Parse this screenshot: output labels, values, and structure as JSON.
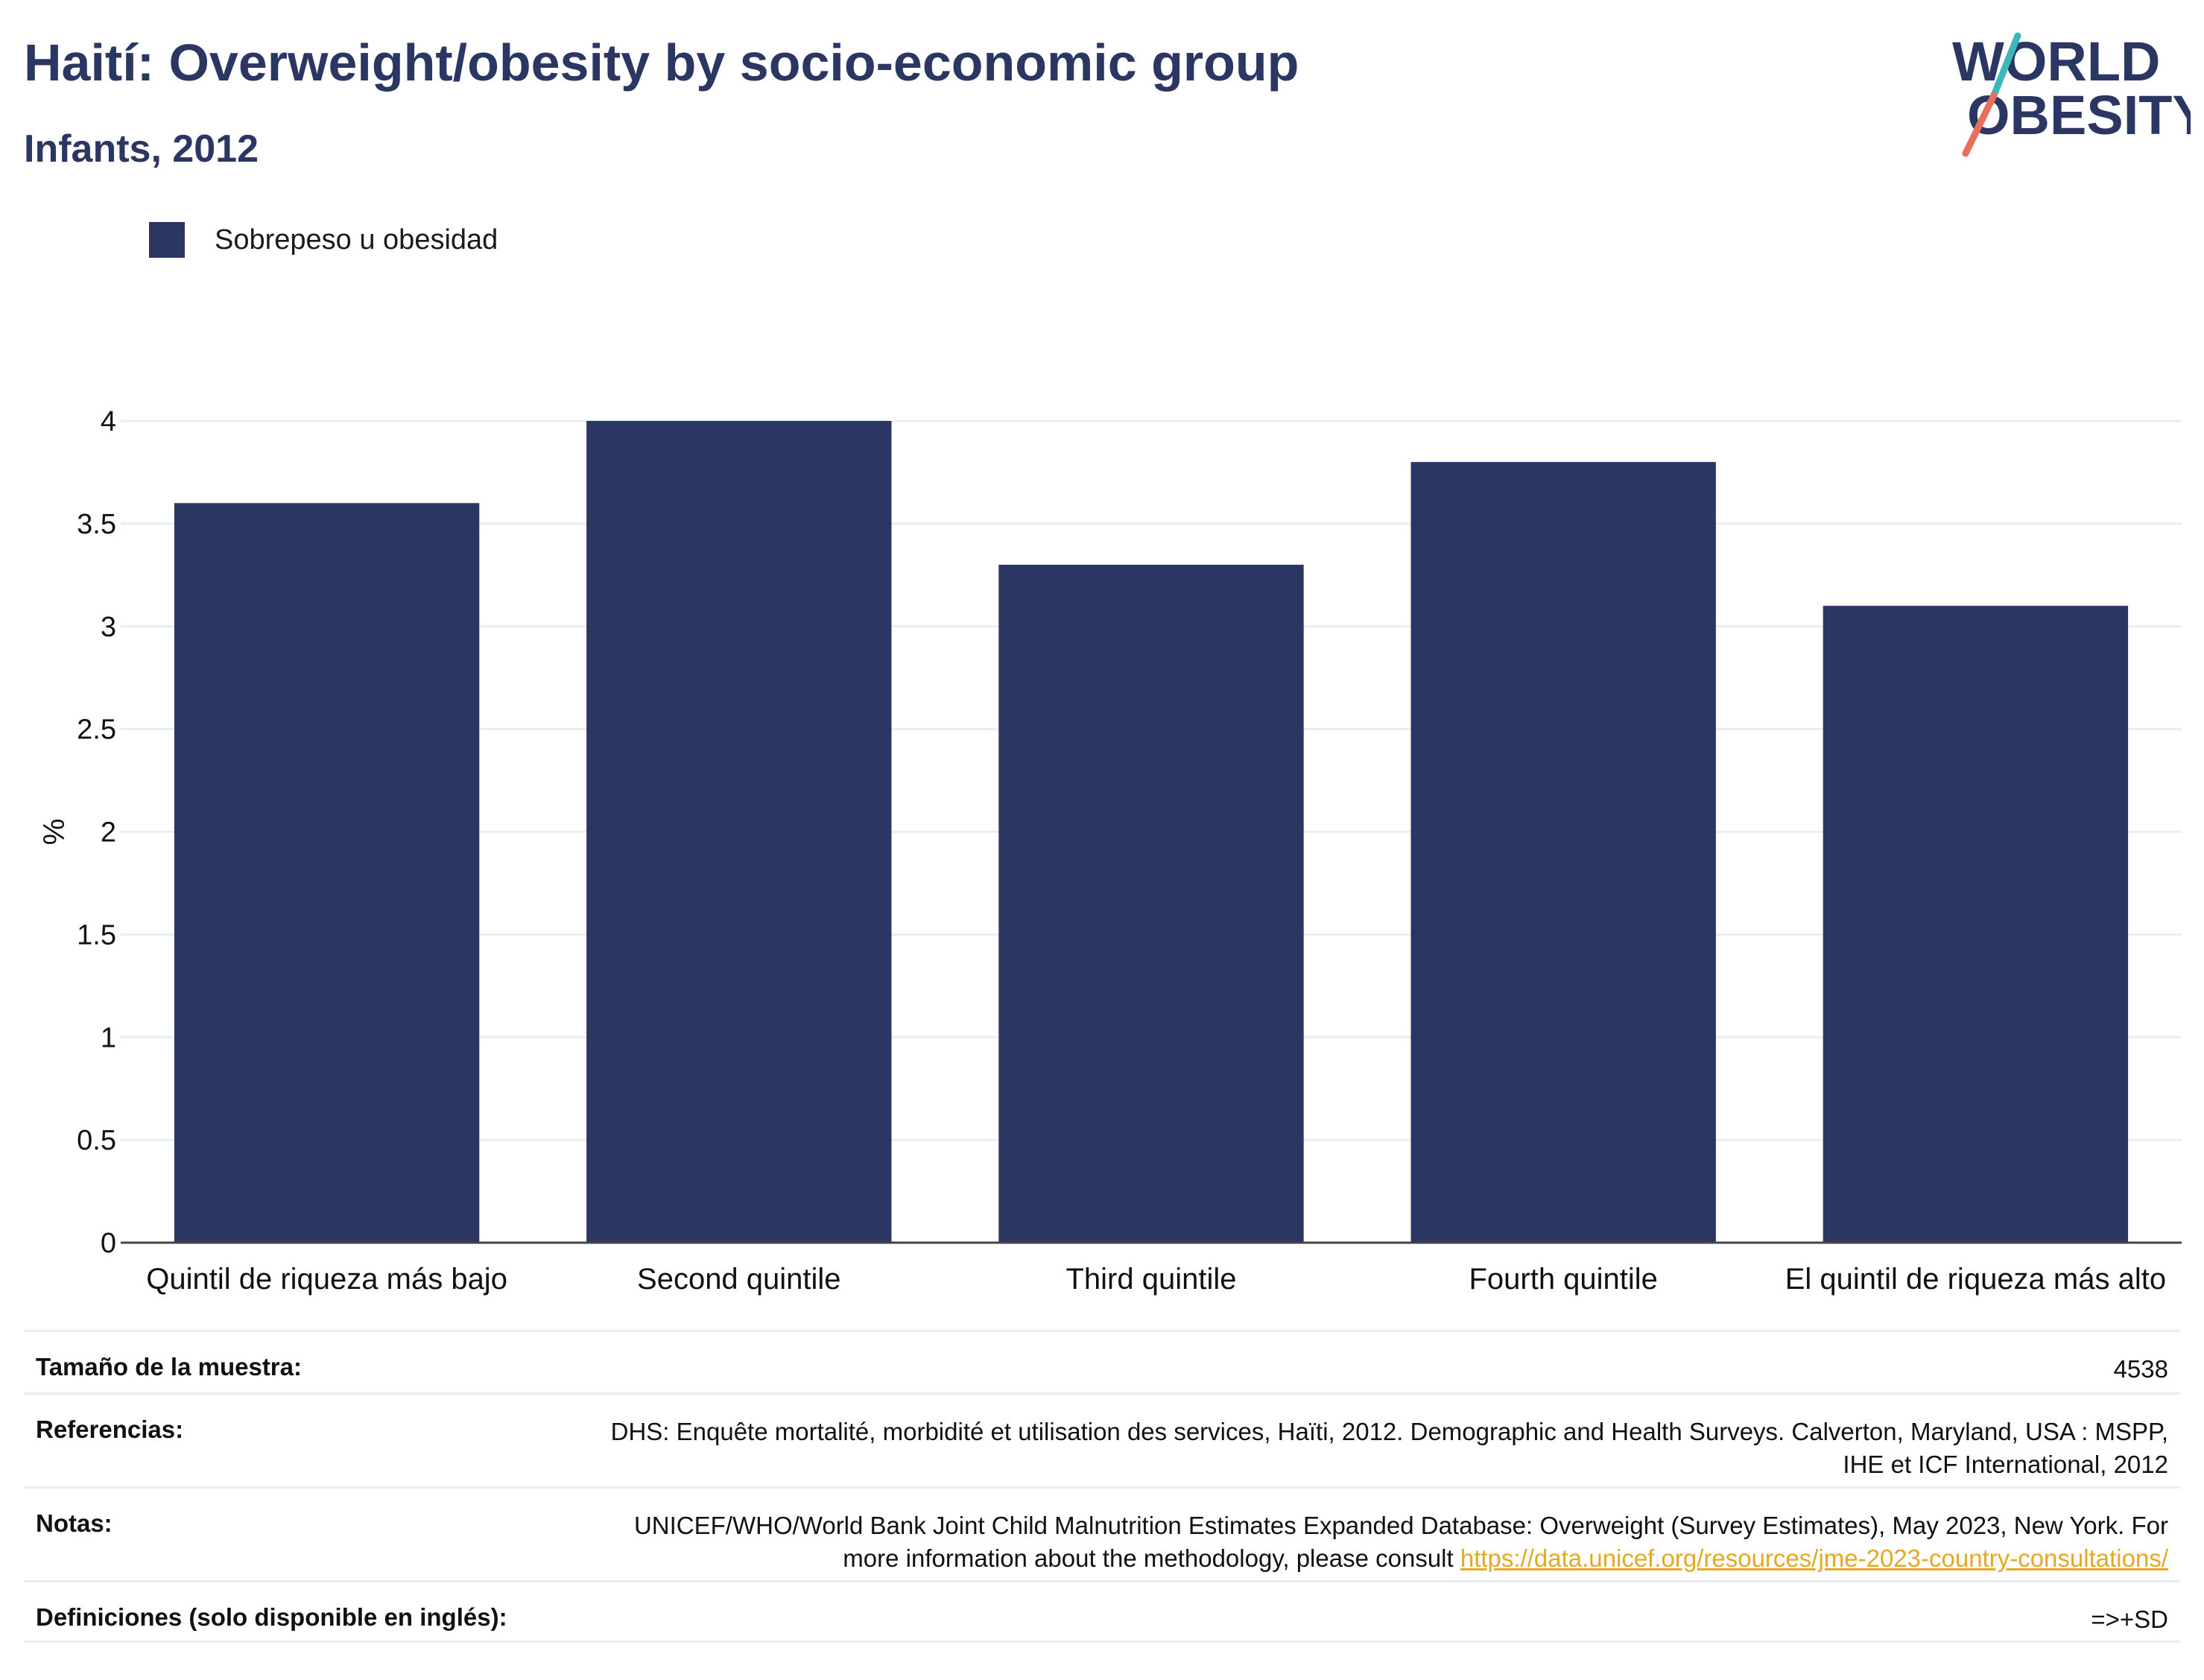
{
  "header": {
    "title": "Haití: Overweight/obesity by socio-economic group",
    "subtitle": "Infants, 2012"
  },
  "logo": {
    "line1": "WORLD",
    "line2": "OBESITY"
  },
  "colors": {
    "bar": "#2b3663",
    "grid": "#e8eef4",
    "link": "#e5a823",
    "logo_teal": "#3cb8b8",
    "logo_coral": "#e8705a"
  },
  "chart_data": {
    "type": "bar",
    "categories": [
      "Quintil de riqueza más bajo",
      "Second quintile",
      "Third quintile",
      "Fourth quintile",
      "El quintil de riqueza más alto"
    ],
    "series": [
      {
        "name": "Sobrepeso u obesidad",
        "values": [
          3.6,
          4.0,
          3.3,
          3.8,
          3.1
        ]
      }
    ],
    "ylabel": "%",
    "xlabel": "",
    "ylim": [
      0,
      4
    ],
    "yticks": [
      "0",
      "0.5",
      "1",
      "1.5",
      "2",
      "2.5",
      "3",
      "3.5",
      "4"
    ],
    "grid": true,
    "legend_position": "top-left"
  },
  "footer": {
    "sample_label": "Tamaño de la muestra:",
    "sample_value": "4538",
    "references_label": "Referencias:",
    "references_value": "DHS: Enquête mortalité, morbidité et utilisation des services, Haïti, 2012. Demographic and Health Surveys. Calverton, Maryland, USA : MSPP, IHE et ICF International, 2012",
    "notes_label": "Notas:",
    "notes_value": "UNICEF/WHO/World Bank Joint Child Malnutrition Estimates Expanded Database: Overweight (Survey Estimates), May 2023, New York. For more information about the methodology, please consult ",
    "notes_link": "https://data.unicef.org/resources/jme-2023-country-consultations/",
    "definitions_label": "Definiciones (solo disponible en inglés):",
    "definitions_value": "=>+SD"
  }
}
